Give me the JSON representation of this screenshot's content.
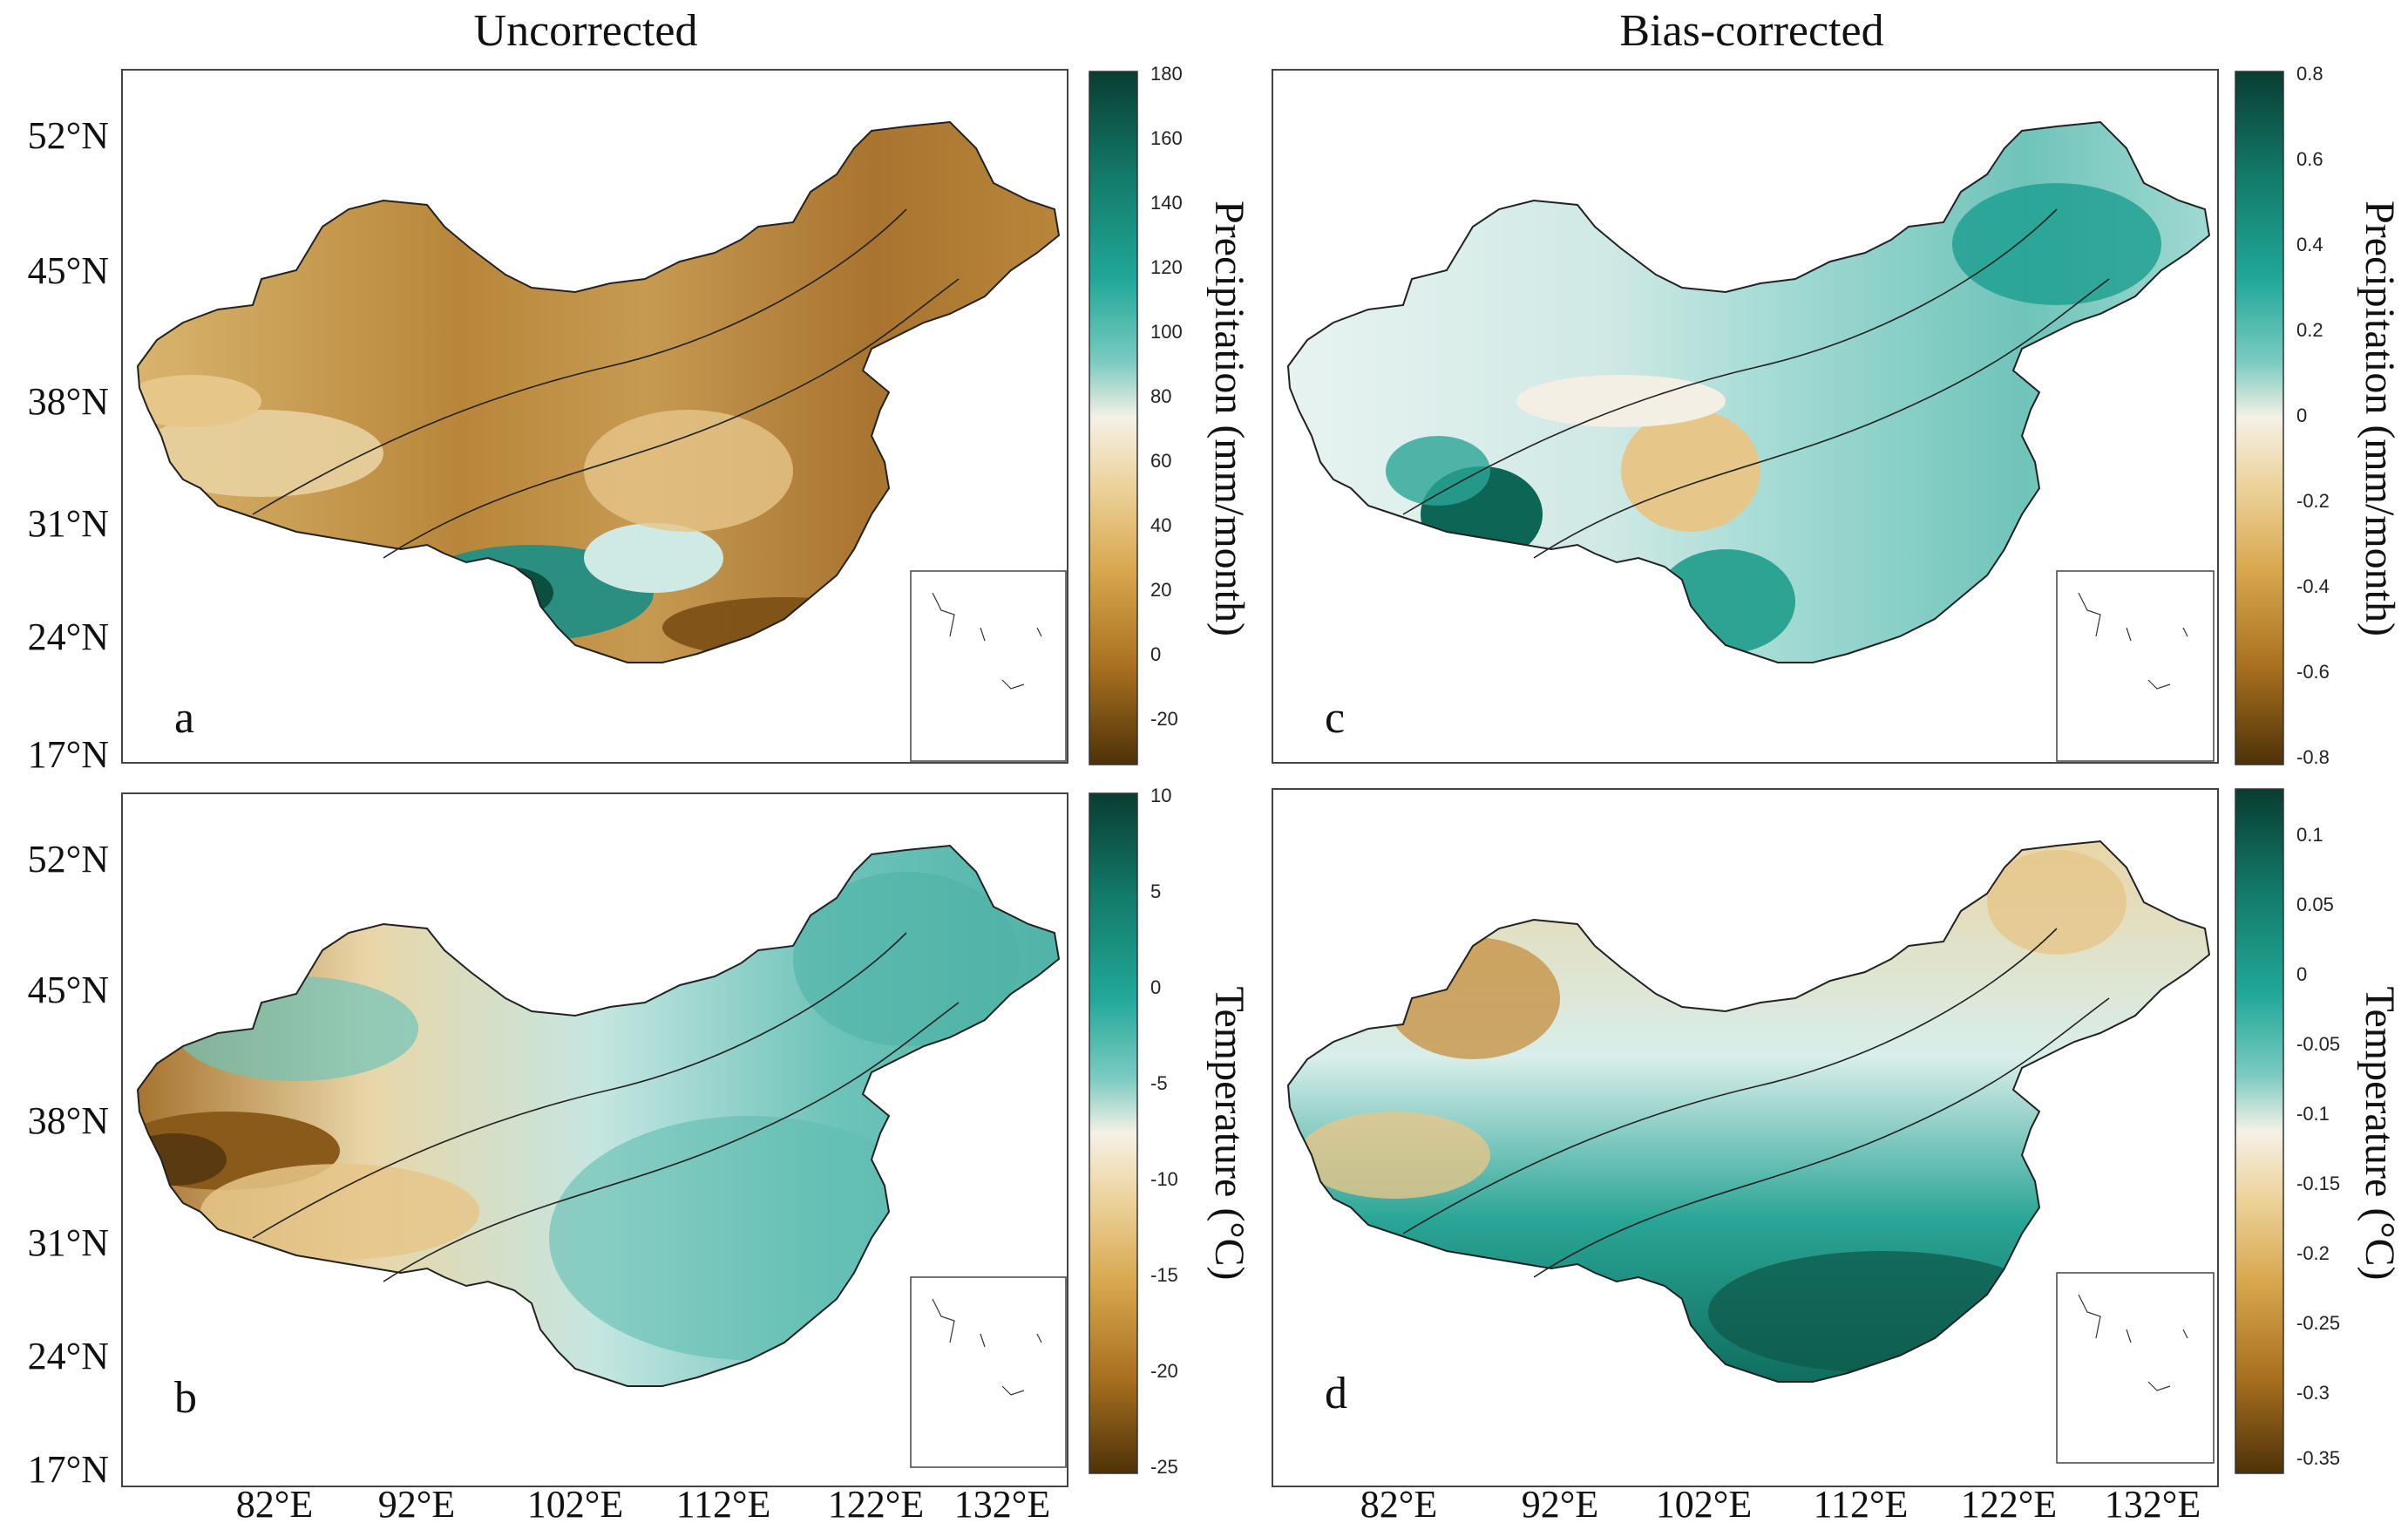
{
  "figure": {
    "column_titles": [
      "Uncorrected",
      "Bias-corrected"
    ],
    "lat_ticks": [
      "52°N",
      "45°N",
      "38°N",
      "31°N",
      "24°N",
      "17°N"
    ],
    "lon_ticks": [
      "82°E",
      "92°E",
      "102°E",
      "112°E",
      "122°E",
      "132°E"
    ],
    "panels": [
      {
        "id": "a",
        "label": "a",
        "variable": "Precipitation (mm/month)",
        "palette": "brown-teal"
      },
      {
        "id": "b",
        "label": "b",
        "variable": "Temperature (°C)",
        "palette": "brown-teal"
      },
      {
        "id": "c",
        "label": "c",
        "variable": "Precipitation (mm/month)",
        "palette": "brown-teal"
      },
      {
        "id": "d",
        "label": "d",
        "variable": "Temperature (°C)",
        "palette": "brown-teal"
      }
    ],
    "colorbars": [
      {
        "id": "cb-a",
        "title": "Precipitation (mm/month)",
        "ticks": [
          "180",
          "160",
          "140",
          "120",
          "100",
          "80",
          "60",
          "40",
          "20",
          "0",
          "-20"
        ]
      },
      {
        "id": "cb-b",
        "title": "Temperature (°C)",
        "ticks": [
          "10",
          "5",
          "0",
          "-5",
          "-10",
          "-15",
          "-20",
          "-25"
        ]
      },
      {
        "id": "cb-c",
        "title": "Precipitation (mm/month)",
        "ticks": [
          "0.8",
          "0.6",
          "0.4",
          "0.2",
          "0",
          "-0.2",
          "-0.4",
          "-0.6",
          "-0.8"
        ]
      },
      {
        "id": "cb-d",
        "title": "Temperature (°C)",
        "ticks": [
          "0.1",
          "0.05",
          "0",
          "-0.05",
          "-0.1",
          "-0.15",
          "-0.2",
          "-0.25",
          "-0.3",
          "-0.35"
        ]
      }
    ],
    "colors": {
      "dark_teal": "#0a4a3c",
      "teal": "#1a9e8e",
      "light_teal": "#9fd9d2",
      "neutral": "#f4efe4",
      "light_brown": "#e6c689",
      "brown": "#b8863a",
      "dark_brown": "#5a3a10"
    }
  }
}
